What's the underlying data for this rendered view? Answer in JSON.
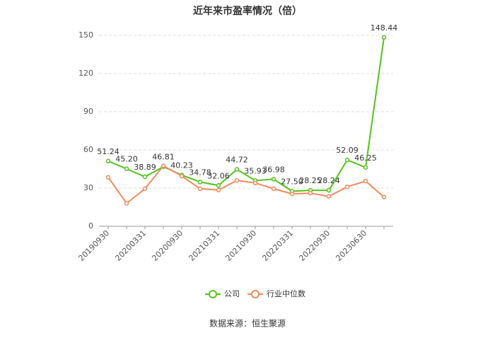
{
  "chart_data": {
    "type": "line",
    "title": "近年来市盈率情况（倍）",
    "categories": [
      "20190930",
      null,
      "20200331",
      null,
      "20200930",
      null,
      "20210331",
      null,
      "20210930",
      null,
      "20220331",
      null,
      "20220930",
      null,
      "20230630",
      null
    ],
    "series": [
      {
        "name": "公司",
        "color": "#52c41a",
        "values": [
          51.24,
          45.2,
          38.89,
          46.81,
          40.23,
          34.78,
          32.06,
          44.72,
          35.93,
          36.98,
          27.5,
          28.25,
          28.24,
          52.09,
          46.25,
          148.44
        ],
        "value_labels": [
          "51.24",
          "45.20",
          "38.89",
          "46.81",
          "40.23",
          "34.78",
          "32.06",
          "44.72",
          "35.93",
          "36.98",
          "27.50",
          "28.25",
          "28.24",
          "52.09",
          "46.25",
          "148.44"
        ]
      },
      {
        "name": "行业中位数",
        "color": "#f08a5d",
        "values": [
          38.5,
          18,
          29.5,
          47.5,
          39.5,
          29.5,
          28.5,
          36,
          34,
          29.5,
          25.5,
          26,
          23.5,
          31,
          35.5,
          23
        ]
      }
    ],
    "ylim": [
      0,
      150
    ],
    "yticks": [
      0,
      30,
      60,
      90,
      120,
      150
    ],
    "grid": true,
    "legend": "bottom",
    "source": "数据来源：恒生聚源"
  }
}
